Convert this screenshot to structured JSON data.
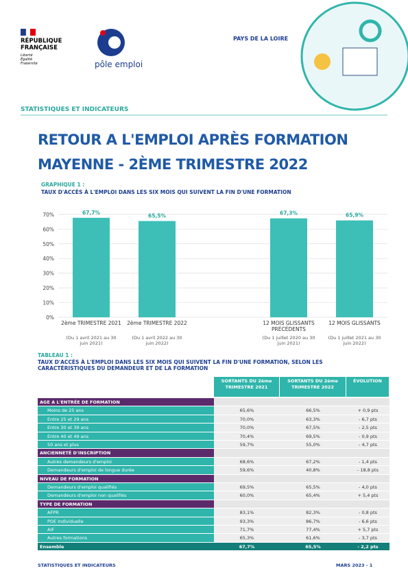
{
  "header": {
    "republic": "RÉPUBLIQUE FRANÇAISE",
    "motto": "Liberté Égalité Fraternité",
    "brand": "pôle emploi",
    "region": "PAYS DE LA LOIRE",
    "section": "STATISTIQUES ET INDICATEURS"
  },
  "title": [
    "RETOUR A L'EMPLOI APRÈS  FORMATION",
    "MAYENNE -  2ÈME TRIMESTRE 2022"
  ],
  "chart_data": {
    "type": "bar",
    "title": "GRAPHIQUE 1 :",
    "subtitle": "TAUX D'ACCÈS À L'EMPLOI DANS LES SIX MOIS QUI SUIVENT LA FIN D'UNE FORMATION",
    "categories": [
      "2ème TRIMESTRE 2021",
      "2ème TRIMESTRE 2022",
      null,
      "12 MOIS GLISSANTS PRÉCÉDENTS",
      "12 MOIS GLISSANTS"
    ],
    "category_notes": [
      "(Du 1 avril 2021 au 30 juin 2021)",
      "(Du 1 avril 2022 au 30 juin 2022)",
      null,
      "(Du 1 juillet 2020 au 30 juin 2021)",
      "(Du 1 juillet 2021 au 30 juin 2022)"
    ],
    "values": [
      67.7,
      65.5,
      null,
      67.3,
      65.9
    ],
    "value_labels": [
      "67,7%",
      "65,5%",
      null,
      "67,3%",
      "65,9%"
    ],
    "color": "#3dbfb8",
    "ylim": [
      0,
      76
    ],
    "grid": true,
    "yticks": [
      {
        "value": 0,
        "label": "0%"
      },
      {
        "value": 10,
        "label": "10%"
      },
      {
        "value": 20,
        "label": "20%"
      },
      {
        "value": 30,
        "label": "30%"
      },
      {
        "value": 40,
        "label": "40%"
      },
      {
        "value": 50,
        "label": "50%"
      },
      {
        "value": 60,
        "label": "60%"
      },
      {
        "value": 70,
        "label": "70%"
      }
    ]
  },
  "table": {
    "title": "TABLEAU 1 :",
    "subtitle": "TAUX D'ACCÈS À L'EMPLOI DANS LES SIX MOIS QUI SUIVENT LA FIN D'UNE FORMATION, SELON LES CARACTÉRISTIQUES DU DEMANDEUR ET DE LA FORMATION",
    "columns": [
      "SORTANTS DU 2ème TRIMESTRE 2021",
      "SORTANTS DU 2ème TRIMESTRE 2022",
      "ÉVOLUTION"
    ],
    "sections": [
      {
        "title": "AGE A L'ENTRÉE DE FORMATION",
        "rows": [
          [
            "Moins de 25 ans",
            "65,6%",
            "66,5%",
            "+ 0,9 pts"
          ],
          [
            "Entre 25 et 29 ans",
            "70,0%",
            "63,3%",
            "- 6,7 pts"
          ],
          [
            "Entre 30 et 39 ans",
            "70,0%",
            "67,5%",
            "- 2,5 pts"
          ],
          [
            "Entre 40 et 49 ans",
            "70,4%",
            "69,5%",
            "- 0,9 pts"
          ],
          [
            "50 ans et plus",
            "59,7%",
            "55,0%",
            "- 4,7 pts"
          ]
        ]
      },
      {
        "title": "ANCIENNETÉ D'INSCRIPTION",
        "rows": [
          [
            "Autres demandeurs d'emploi",
            "68,6%",
            "67,2%",
            "- 1,4 pts"
          ],
          [
            "Demandeurs d'emploi de longue durée",
            "59,6%",
            "40,8%",
            "- 18,8 pts"
          ]
        ]
      },
      {
        "title": "NIVEAU DE FORMATION",
        "rows": [
          [
            "Demandeurs d'emploi qualifiés",
            "69,5%",
            "65,5%",
            "- 4,0 pts"
          ],
          [
            "Demandeurs d'emploi non qualifiés",
            "60,0%",
            "65,4%",
            "+ 5,4 pts"
          ]
        ]
      },
      {
        "title": "TYPE DE FORMATION",
        "rows": [
          [
            "AFPR",
            "83,1%",
            "82,3%",
            "- 0,8 pts"
          ],
          [
            "POE Individuelle",
            "93,3%",
            "86,7%",
            "- 6,6 pts"
          ],
          [
            "AIF",
            "71,7%",
            "77,4%",
            "+ 5,7 pts"
          ],
          [
            "Autres formations",
            "65,3%",
            "61,6%",
            "- 3,7 pts"
          ]
        ]
      }
    ],
    "total": [
      "Ensemble",
      "67,7%",
      "65,5%",
      "- 2,2 pts"
    ]
  },
  "footer": {
    "left": "STATISTIQUES ET INDICATEURS",
    "right": "MARS 2023 -  1"
  }
}
